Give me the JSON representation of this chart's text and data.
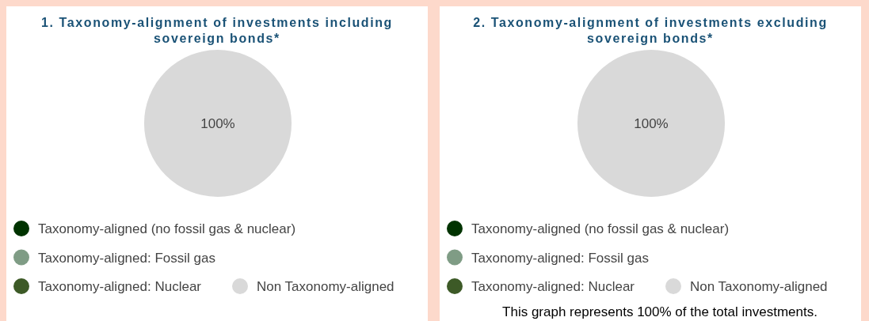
{
  "chart_data": [
    {
      "type": "pie",
      "title": "1. Taxonomy-alignment of investments including sovereign bonds*",
      "categories": [
        "Taxonomy-aligned (no fossil gas & nuclear)",
        "Taxonomy-aligned: Fossil gas",
        "Taxonomy-aligned: Nuclear",
        "Non Taxonomy-aligned"
      ],
      "values": [
        0,
        0,
        0,
        100
      ],
      "colors": [
        "#003300",
        "#7f9c85",
        "#3d5a27",
        "#d9d9d9"
      ],
      "value_labels": [
        null,
        null,
        null,
        "100%"
      ],
      "legend": "bottom"
    },
    {
      "type": "pie",
      "title": "2. Taxonomy-alignment of investments excluding sovereign bonds*",
      "categories": [
        "Taxonomy-aligned (no fossil gas & nuclear)",
        "Taxonomy-aligned: Fossil gas",
        "Taxonomy-aligned: Nuclear",
        "Non Taxonomy-aligned"
      ],
      "values": [
        0,
        0,
        0,
        100
      ],
      "colors": [
        "#003300",
        "#7f9c85",
        "#3d5a27",
        "#d9d9d9"
      ],
      "value_labels": [
        null,
        null,
        null,
        "100%"
      ],
      "legend": "bottom",
      "annotations": [
        "This graph represents 100% of the total investments."
      ]
    }
  ]
}
